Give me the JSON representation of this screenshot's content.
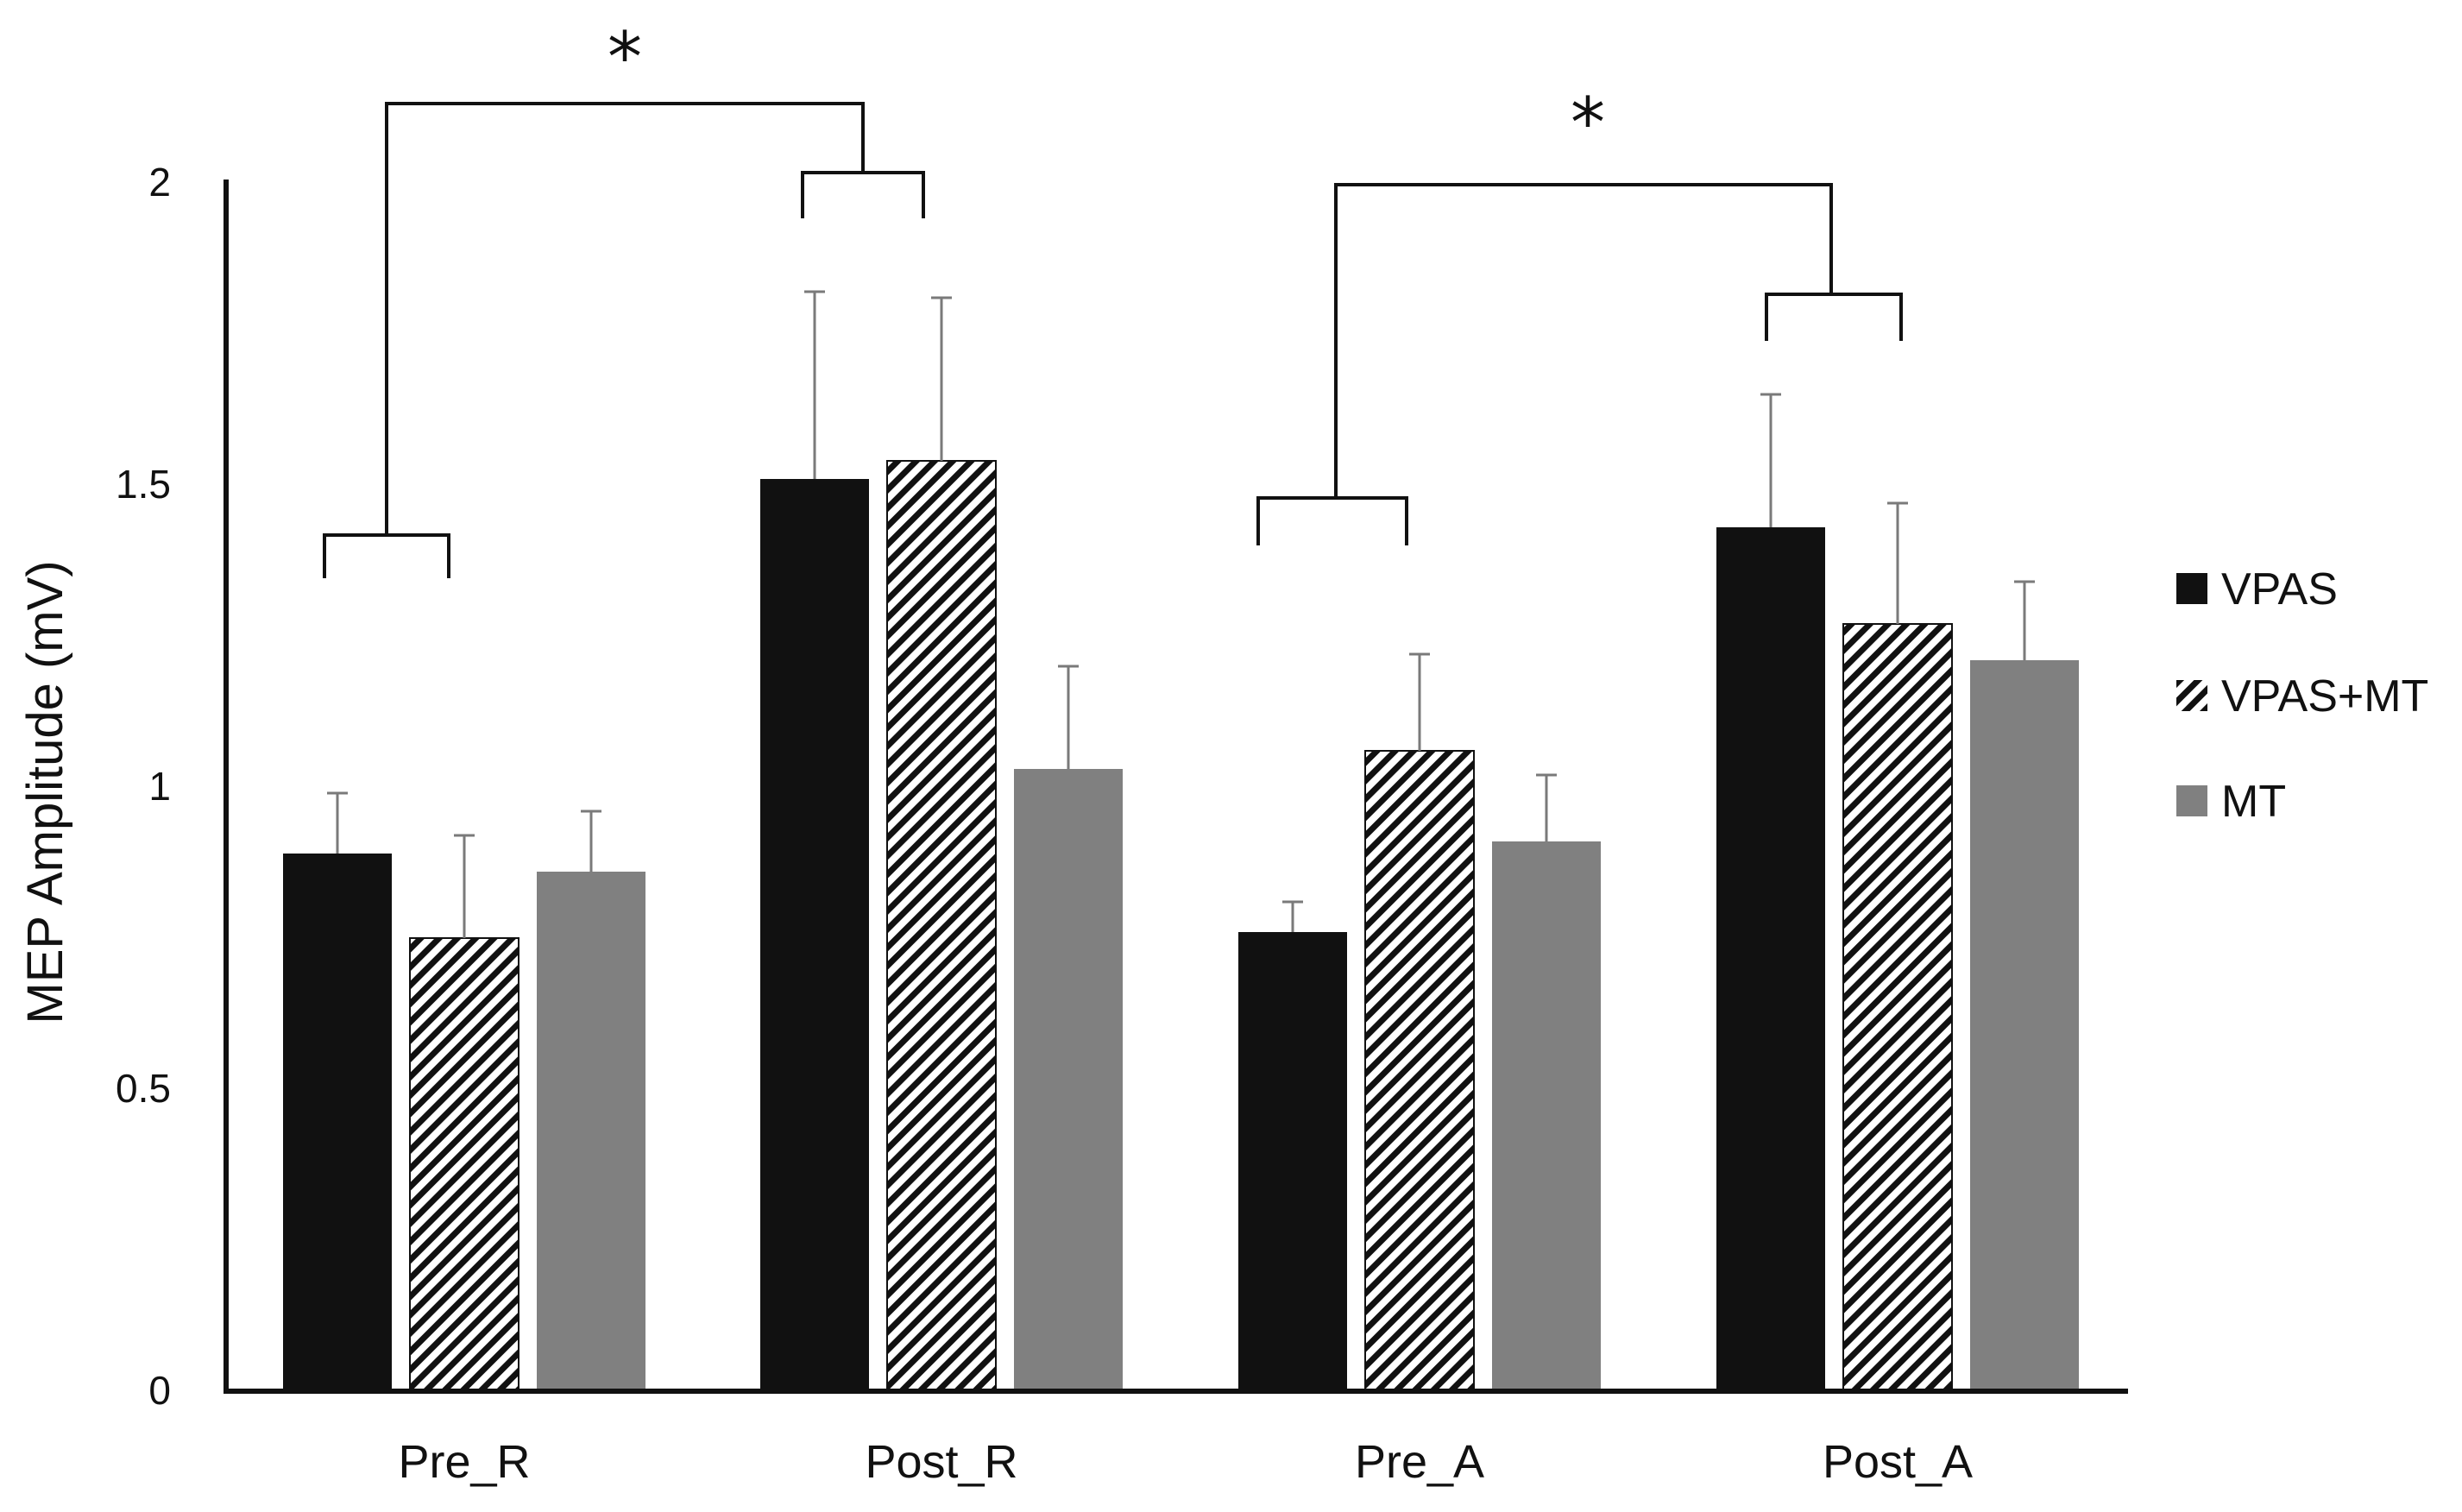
{
  "chart_data": {
    "type": "bar",
    "title": "",
    "xlabel": "",
    "ylabel": "MEP Amplitude (mV)",
    "ylim": [
      0,
      2
    ],
    "yticks": [
      0,
      0.5,
      1,
      1.5,
      2
    ],
    "ytick_labels": [
      "0",
      "0.5",
      "1",
      "1.5",
      "2"
    ],
    "grid": false,
    "legend_position": "right",
    "categories": [
      "Pre_R",
      "Post_R",
      "Pre_A",
      "Post_A"
    ],
    "series": [
      {
        "name": "VPAS",
        "values": [
          0.89,
          1.51,
          0.76,
          1.43
        ],
        "errors": [
          0.1,
          0.31,
          0.05,
          0.22
        ],
        "color": "#111111",
        "pattern": "solid"
      },
      {
        "name": "VPAS+MT",
        "values": [
          0.75,
          1.54,
          1.06,
          1.27
        ],
        "errors": [
          0.17,
          0.27,
          0.16,
          0.2
        ],
        "color": "#111111",
        "pattern": "hatched"
      },
      {
        "name": "MT",
        "values": [
          0.86,
          1.03,
          0.91,
          1.21
        ],
        "errors": [
          0.1,
          0.17,
          0.11,
          0.13
        ],
        "color": "#808080",
        "pattern": "solid"
      }
    ],
    "annotations": [
      {
        "text": "*",
        "between": [
          "Pre_R",
          "Post_R"
        ],
        "meaning": "significant difference"
      },
      {
        "text": "*",
        "between": [
          "Pre_A",
          "Post_A"
        ],
        "meaning": "significant difference"
      }
    ]
  }
}
